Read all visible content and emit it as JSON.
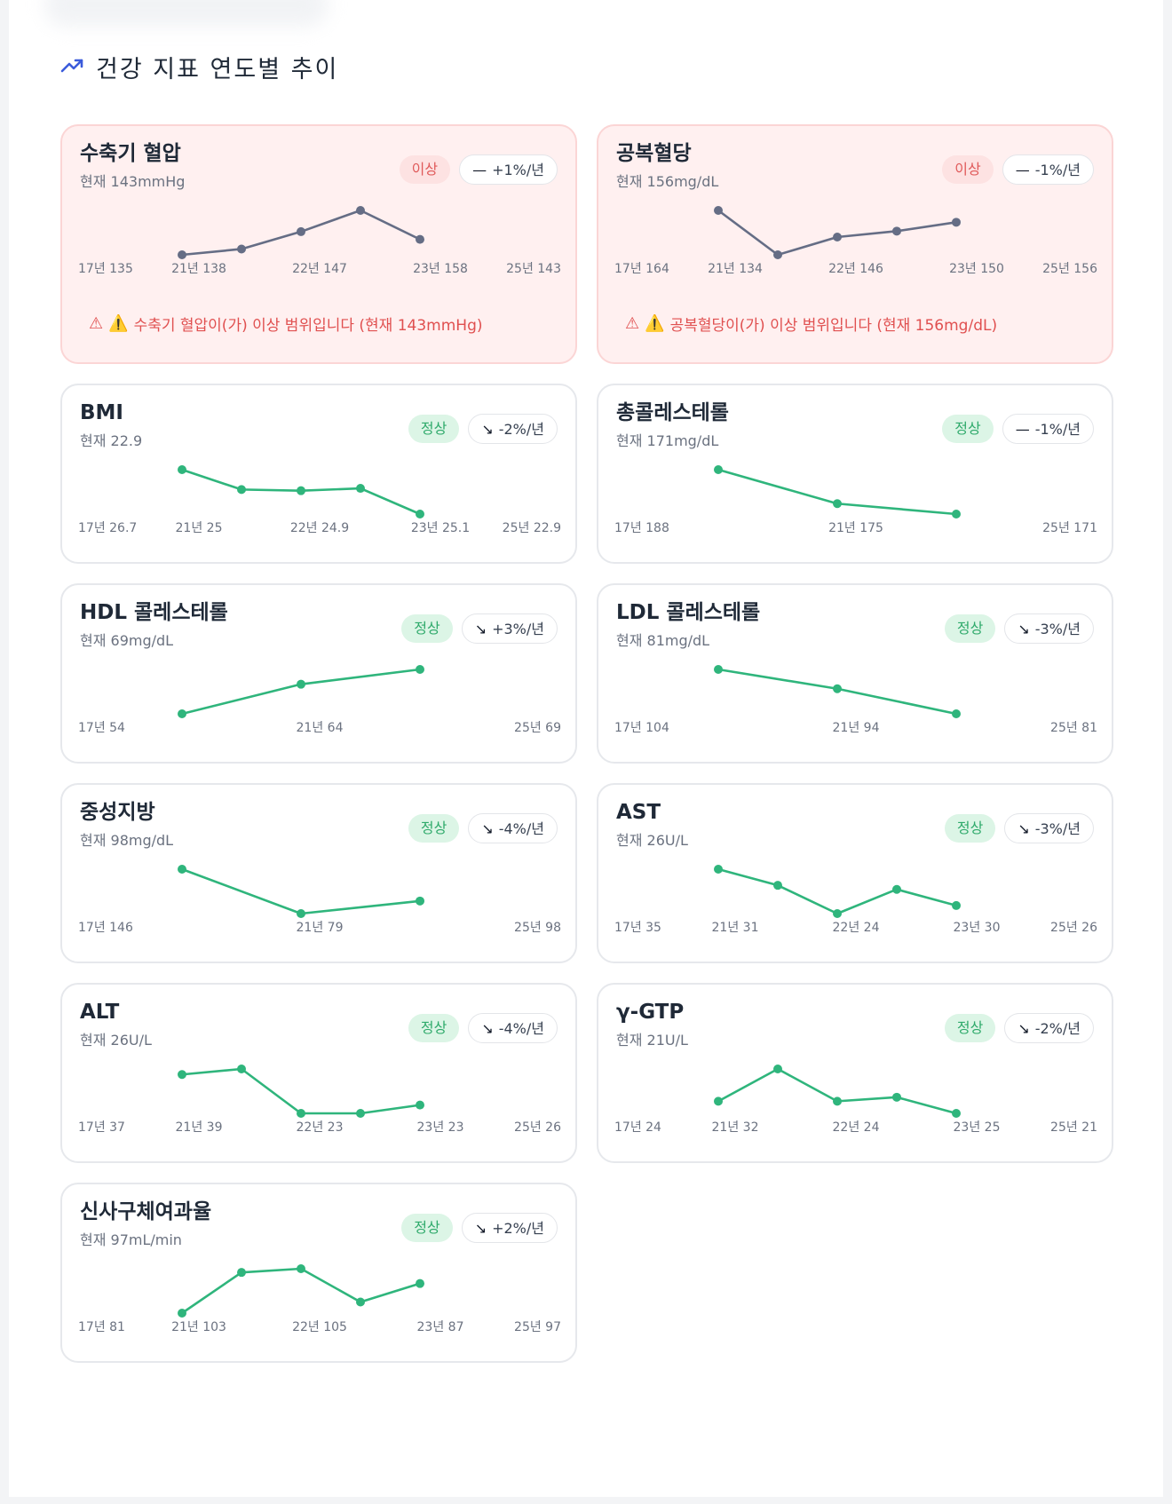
{
  "section": {
    "title": "건강 지표 연도별 추이",
    "icon": "trending-up-icon",
    "icon_color": "#3b5bdb"
  },
  "colors": {
    "abnormal_line": "#656d85",
    "normal_line": "#2fb57c",
    "alert_text": "#e05050"
  },
  "metrics": [
    {
      "id": "systolic-bp",
      "title": "수축기 혈압",
      "current": "현재 143mmHg",
      "status": "이상",
      "status_type": "abnormal",
      "trend": "+1%/년",
      "trend_icon": "—",
      "alert": "수축기 혈압이(가) 이상 범위입니다 (현재 143mmHg)",
      "chart_data": {
        "type": "line",
        "x": [
          "17년",
          "21년",
          "22년",
          "23년",
          "25년"
        ],
        "values": [
          135,
          138,
          147,
          158,
          143
        ],
        "labels": [
          "17년 135",
          "21년 138",
          "22년 147",
          "23년 158",
          "25년 143"
        ]
      }
    },
    {
      "id": "fasting-glucose",
      "title": "공복혈당",
      "current": "현재 156mg/dL",
      "status": "이상",
      "status_type": "abnormal",
      "trend": "-1%/년",
      "trend_icon": "—",
      "alert": "공복혈당이(가) 이상 범위입니다 (현재 156mg/dL)",
      "chart_data": {
        "type": "line",
        "x": [
          "17년",
          "21년",
          "22년",
          "23년",
          "25년"
        ],
        "values": [
          164,
          134,
          146,
          150,
          156
        ],
        "labels": [
          "17년 164",
          "21년 134",
          "22년 146",
          "23년 150",
          "25년 156"
        ]
      }
    },
    {
      "id": "bmi",
      "title": "BMI",
      "current": "현재 22.9",
      "status": "정상",
      "status_type": "normal",
      "trend": "-2%/년",
      "trend_icon": "↘",
      "chart_data": {
        "type": "line",
        "x": [
          "17년",
          "21년",
          "22년",
          "23년",
          "25년"
        ],
        "values": [
          26.7,
          25,
          24.9,
          25.1,
          22.9
        ],
        "labels": [
          "17년 26.7",
          "21년 25",
          "22년 24.9",
          "23년 25.1",
          "25년 22.9"
        ]
      }
    },
    {
      "id": "total-cholesterol",
      "title": "총콜레스테롤",
      "current": "현재 171mg/dL",
      "status": "정상",
      "status_type": "normal",
      "trend": "-1%/년",
      "trend_icon": "—",
      "chart_data": {
        "type": "line",
        "x": [
          "17년",
          "21년",
          "25년"
        ],
        "values": [
          188,
          175,
          171
        ],
        "labels": [
          "17년 188",
          "21년 175",
          "25년 171"
        ]
      }
    },
    {
      "id": "hdl",
      "title": "HDL 콜레스테롤",
      "current": "현재 69mg/dL",
      "status": "정상",
      "status_type": "normal",
      "trend": "+3%/년",
      "trend_icon": "↘",
      "chart_data": {
        "type": "line",
        "x": [
          "17년",
          "21년",
          "25년"
        ],
        "values": [
          54,
          64,
          69
        ],
        "labels": [
          "17년 54",
          "21년 64",
          "25년 69"
        ]
      }
    },
    {
      "id": "ldl",
      "title": "LDL 콜레스테롤",
      "current": "현재 81mg/dL",
      "status": "정상",
      "status_type": "normal",
      "trend": "-3%/년",
      "trend_icon": "↘",
      "chart_data": {
        "type": "line",
        "x": [
          "17년",
          "21년",
          "25년"
        ],
        "values": [
          104,
          94,
          81
        ],
        "labels": [
          "17년 104",
          "21년 94",
          "25년 81"
        ]
      }
    },
    {
      "id": "triglyceride",
      "title": "중성지방",
      "current": "현재 98mg/dL",
      "status": "정상",
      "status_type": "normal",
      "trend": "-4%/년",
      "trend_icon": "↘",
      "chart_data": {
        "type": "line",
        "x": [
          "17년",
          "21년",
          "25년"
        ],
        "values": [
          146,
          79,
          98
        ],
        "labels": [
          "17년 146",
          "21년 79",
          "25년 98"
        ]
      }
    },
    {
      "id": "ast",
      "title": "AST",
      "current": "현재 26U/L",
      "status": "정상",
      "status_type": "normal",
      "trend": "-3%/년",
      "trend_icon": "↘",
      "chart_data": {
        "type": "line",
        "x": [
          "17년",
          "21년",
          "22년",
          "23년",
          "25년"
        ],
        "values": [
          35,
          31,
          24,
          30,
          26
        ],
        "labels": [
          "17년 35",
          "21년 31",
          "22년 24",
          "23년 30",
          "25년 26"
        ]
      }
    },
    {
      "id": "alt",
      "title": "ALT",
      "current": "현재 26U/L",
      "status": "정상",
      "status_type": "normal",
      "trend": "-4%/년",
      "trend_icon": "↘",
      "chart_data": {
        "type": "line",
        "x": [
          "17년",
          "21년",
          "22년",
          "23년",
          "25년"
        ],
        "values": [
          37,
          39,
          23,
          23,
          26
        ],
        "labels": [
          "17년 37",
          "21년 39",
          "22년 23",
          "23년 23",
          "25년 26"
        ]
      }
    },
    {
      "id": "ggtp",
      "title": "γ-GTP",
      "current": "현재 21U/L",
      "status": "정상",
      "status_type": "normal",
      "trend": "-2%/년",
      "trend_icon": "↘",
      "chart_data": {
        "type": "line",
        "x": [
          "17년",
          "21년",
          "22년",
          "23년",
          "25년"
        ],
        "values": [
          24,
          32,
          24,
          25,
          21
        ],
        "labels": [
          "17년 24",
          "21년 32",
          "22년 24",
          "23년 25",
          "25년 21"
        ]
      }
    },
    {
      "id": "egfr",
      "title": "신사구체여과율",
      "current": "현재 97mL/min",
      "status": "정상",
      "status_type": "normal",
      "trend": "+2%/년",
      "trend_icon": "↘",
      "chart_data": {
        "type": "line",
        "x": [
          "17년",
          "21년",
          "22년",
          "23년",
          "25년"
        ],
        "values": [
          81,
          103,
          105,
          87,
          97
        ],
        "labels": [
          "17년 81",
          "21년 103",
          "22년 105",
          "23년 87",
          "25년 97"
        ]
      }
    }
  ]
}
